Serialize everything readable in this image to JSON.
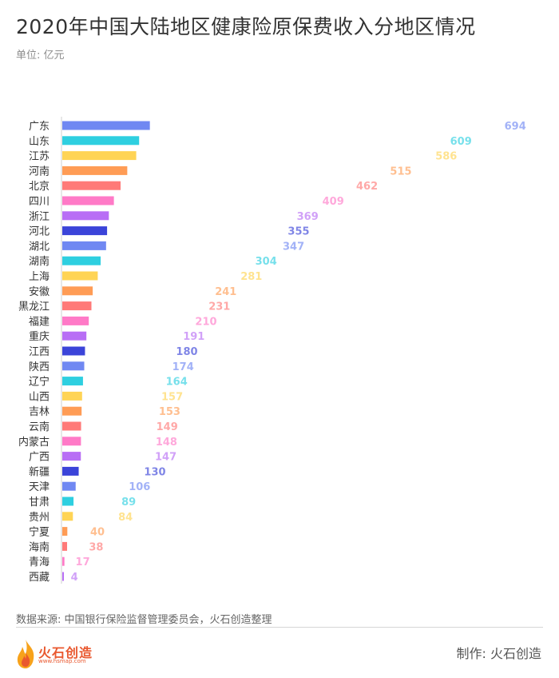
{
  "title": "2020年中国大陆地区健康险原保费收入分地区情况",
  "unit": "单位: 亿元",
  "source": "数据来源: 中国银行保险监督管理委员会，火石创造整理",
  "maker": "制作:  火石创造",
  "logo": {
    "text": "火石创造",
    "url": "www.hsmap.com",
    "icon": "flame-icon"
  },
  "chart_data": {
    "type": "bar",
    "orientation": "horizontal",
    "title": "2020年中国大陆地区健康险原保费收入分地区情况",
    "unit": "单位: 亿元",
    "categories": [
      "广东",
      "山东",
      "江苏",
      "河南",
      "北京",
      "四川",
      "浙江",
      "河北",
      "湖北",
      "湖南",
      "上海",
      "安徽",
      "黑龙江",
      "福建",
      "重庆",
      "江西",
      "陕西",
      "辽宁",
      "山西",
      "吉林",
      "云南",
      "内蒙古",
      "广西",
      "新疆",
      "天津",
      "甘肃",
      "贵州",
      "宁夏",
      "海南",
      "青海",
      "西藏"
    ],
    "values": [
      694,
      609,
      586,
      515,
      462,
      409,
      369,
      355,
      347,
      304,
      281,
      241,
      231,
      210,
      191,
      180,
      174,
      164,
      157,
      153,
      149,
      148,
      147,
      130,
      106,
      89,
      84,
      40,
      38,
      17,
      4
    ],
    "colors": [
      "#7088f2",
      "#2ecfe0",
      "#ffd455",
      "#ff9c55",
      "#ff7a78",
      "#ff7ac7",
      "#b86ef5",
      "#3b44d9"
    ],
    "grid": false,
    "legend": "none"
  }
}
